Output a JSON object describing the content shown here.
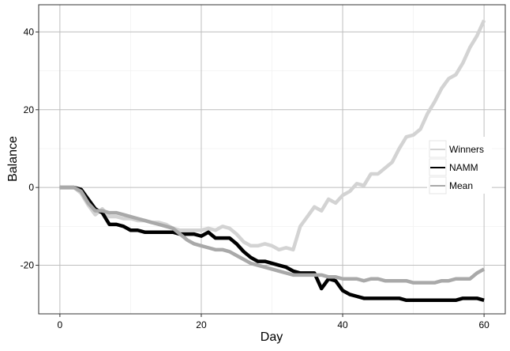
{
  "chart_data": {
    "type": "line",
    "title": "",
    "xlabel": "Day",
    "ylabel": "Balance",
    "xlim": [
      -3,
      63
    ],
    "ylim": [
      -32.5,
      47
    ],
    "x_ticks": [
      0,
      20,
      40,
      60
    ],
    "y_ticks": [
      -20,
      0,
      20,
      40
    ],
    "grid": true,
    "legend_position": "right",
    "series": [
      {
        "name": "Winners",
        "color": "#d3d3d3",
        "points": [
          [
            0,
            0
          ],
          [
            1,
            0
          ],
          [
            2,
            0
          ],
          [
            3,
            -1.5
          ],
          [
            4,
            -4.5
          ],
          [
            5,
            -7
          ],
          [
            6,
            -5.5
          ],
          [
            7,
            -7.5
          ],
          [
            8,
            -7.5
          ],
          [
            9,
            -8
          ],
          [
            10,
            -8
          ],
          [
            11,
            -8.5
          ],
          [
            12,
            -8.5
          ],
          [
            13,
            -9
          ],
          [
            14,
            -9
          ],
          [
            15,
            -9.5
          ],
          [
            16,
            -10.5
          ],
          [
            17,
            -11
          ],
          [
            18,
            -11
          ],
          [
            19,
            -11
          ],
          [
            20,
            -11
          ],
          [
            21,
            -10.5
          ],
          [
            22,
            -11
          ],
          [
            23,
            -10
          ],
          [
            24,
            -10.5
          ],
          [
            25,
            -12
          ],
          [
            26,
            -14
          ],
          [
            27,
            -15
          ],
          [
            28,
            -15
          ],
          [
            29,
            -14.5
          ],
          [
            30,
            -15
          ],
          [
            31,
            -16
          ],
          [
            32,
            -15.5
          ],
          [
            33,
            -16
          ],
          [
            34,
            -10
          ],
          [
            35,
            -7.5
          ],
          [
            36,
            -5
          ],
          [
            37,
            -6
          ],
          [
            38,
            -3
          ],
          [
            39,
            -4
          ],
          [
            40,
            -2
          ],
          [
            41,
            -1
          ],
          [
            42,
            1
          ],
          [
            43,
            0.5
          ],
          [
            44,
            3.5
          ],
          [
            45,
            3.5
          ],
          [
            46,
            5
          ],
          [
            47,
            6.5
          ],
          [
            48,
            10
          ],
          [
            49,
            13
          ],
          [
            50,
            13.5
          ],
          [
            51,
            15
          ],
          [
            52,
            19
          ],
          [
            53,
            22
          ],
          [
            54,
            25.5
          ],
          [
            55,
            28
          ],
          [
            56,
            29
          ],
          [
            57,
            32
          ],
          [
            58,
            36
          ],
          [
            59,
            39
          ],
          [
            60,
            43
          ]
        ]
      },
      {
        "name": "NAMM",
        "color": "#000000",
        "points": [
          [
            0,
            0
          ],
          [
            1,
            0
          ],
          [
            2,
            0
          ],
          [
            3,
            -0.5
          ],
          [
            4,
            -3
          ],
          [
            5,
            -5.5
          ],
          [
            6,
            -6.5
          ],
          [
            7,
            -9.5
          ],
          [
            8,
            -9.5
          ],
          [
            9,
            -10
          ],
          [
            10,
            -11
          ],
          [
            11,
            -11
          ],
          [
            12,
            -11.5
          ],
          [
            13,
            -11.5
          ],
          [
            14,
            -11.5
          ],
          [
            15,
            -11.5
          ],
          [
            16,
            -11.5
          ],
          [
            17,
            -12
          ],
          [
            18,
            -12
          ],
          [
            19,
            -12
          ],
          [
            20,
            -12.5
          ],
          [
            21,
            -11.5
          ],
          [
            22,
            -13
          ],
          [
            23,
            -13
          ],
          [
            24,
            -13
          ],
          [
            25,
            -14.5
          ],
          [
            26,
            -16.5
          ],
          [
            27,
            -18
          ],
          [
            28,
            -19
          ],
          [
            29,
            -19
          ],
          [
            30,
            -19.5
          ],
          [
            31,
            -20
          ],
          [
            32,
            -20.5
          ],
          [
            33,
            -21.5
          ],
          [
            34,
            -22
          ],
          [
            35,
            -22
          ],
          [
            36,
            -22
          ],
          [
            37,
            -26
          ],
          [
            38,
            -23.5
          ],
          [
            39,
            -24
          ],
          [
            40,
            -26.5
          ],
          [
            41,
            -27.5
          ],
          [
            42,
            -28
          ],
          [
            43,
            -28.5
          ],
          [
            44,
            -28.5
          ],
          [
            45,
            -28.5
          ],
          [
            46,
            -28.5
          ],
          [
            47,
            -28.5
          ],
          [
            48,
            -28.5
          ],
          [
            49,
            -29
          ],
          [
            50,
            -29
          ],
          [
            51,
            -29
          ],
          [
            52,
            -29
          ],
          [
            53,
            -29
          ],
          [
            54,
            -29
          ],
          [
            55,
            -29
          ],
          [
            56,
            -29
          ],
          [
            57,
            -28.5
          ],
          [
            58,
            -28.5
          ],
          [
            59,
            -28.5
          ],
          [
            60,
            -29
          ]
        ]
      },
      {
        "name": "Mean",
        "color": "#a9a9a9",
        "points": [
          [
            0,
            0
          ],
          [
            1,
            0
          ],
          [
            2,
            0
          ],
          [
            3,
            -1
          ],
          [
            4,
            -4
          ],
          [
            5,
            -6
          ],
          [
            6,
            -6
          ],
          [
            7,
            -6.5
          ],
          [
            8,
            -6.5
          ],
          [
            9,
            -7
          ],
          [
            10,
            -7.5
          ],
          [
            11,
            -8
          ],
          [
            12,
            -8.5
          ],
          [
            13,
            -9
          ],
          [
            14,
            -9.5
          ],
          [
            15,
            -10
          ],
          [
            16,
            -10.5
          ],
          [
            17,
            -12
          ],
          [
            18,
            -13.5
          ],
          [
            19,
            -14.5
          ],
          [
            20,
            -15
          ],
          [
            21,
            -15.5
          ],
          [
            22,
            -16
          ],
          [
            23,
            -16
          ],
          [
            24,
            -16.5
          ],
          [
            25,
            -17.5
          ],
          [
            26,
            -18.5
          ],
          [
            27,
            -19.5
          ],
          [
            28,
            -20
          ],
          [
            29,
            -20.5
          ],
          [
            30,
            -21
          ],
          [
            31,
            -21.5
          ],
          [
            32,
            -22
          ],
          [
            33,
            -22.5
          ],
          [
            34,
            -22.5
          ],
          [
            35,
            -22.5
          ],
          [
            36,
            -22.5
          ],
          [
            37,
            -22.5
          ],
          [
            38,
            -23
          ],
          [
            39,
            -23
          ],
          [
            40,
            -23.5
          ],
          [
            41,
            -23.5
          ],
          [
            42,
            -23.5
          ],
          [
            43,
            -24
          ],
          [
            44,
            -23.5
          ],
          [
            45,
            -23.5
          ],
          [
            46,
            -24
          ],
          [
            47,
            -24
          ],
          [
            48,
            -24
          ],
          [
            49,
            -24
          ],
          [
            50,
            -24.5
          ],
          [
            51,
            -24.5
          ],
          [
            52,
            -24.5
          ],
          [
            53,
            -24.5
          ],
          [
            54,
            -24
          ],
          [
            55,
            -24
          ],
          [
            56,
            -23.5
          ],
          [
            57,
            -23.5
          ],
          [
            58,
            -23.5
          ],
          [
            59,
            -22
          ],
          [
            60,
            -21
          ]
        ]
      }
    ]
  }
}
